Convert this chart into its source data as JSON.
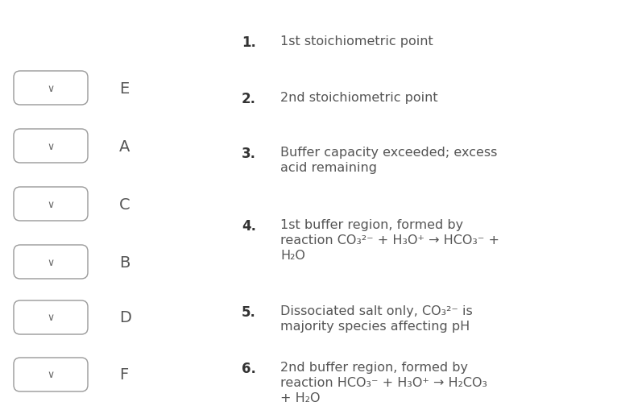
{
  "background_color": "#ffffff",
  "left_labels": [
    "E",
    "A",
    "C",
    "B",
    "D",
    "F"
  ],
  "right_items": [
    {
      "number": "1.",
      "lines": [
        "1st stoichiometric point"
      ]
    },
    {
      "number": "2.",
      "lines": [
        "2nd stoichiometric point"
      ]
    },
    {
      "number": "3.",
      "lines": [
        "Buffer capacity exceeded; excess",
        "acid remaining"
      ]
    },
    {
      "number": "4.",
      "lines": [
        "1st buffer region, formed by",
        "reaction CO₃²⁻ + H₃O⁺ → HCO₃⁻ +",
        "H₂O"
      ]
    },
    {
      "number": "5.",
      "lines": [
        "Dissociated salt only, CO₃²⁻ is",
        "majority species affecting pH"
      ]
    },
    {
      "number": "6.",
      "lines": [
        "2nd buffer region, formed by",
        "reaction HCO₃⁻ + H₃O⁺ → H₂CO₃",
        "+ H₂O"
      ]
    }
  ],
  "box_color": "#ffffff",
  "box_edge_color": "#999999",
  "text_color": "#555555",
  "number_color": "#333333",
  "label_color": "#555555",
  "font_size_main": 11.5,
  "font_size_label": 14,
  "font_size_number": 12,
  "font_size_chevron": 9,
  "chevron_color": "#666666"
}
